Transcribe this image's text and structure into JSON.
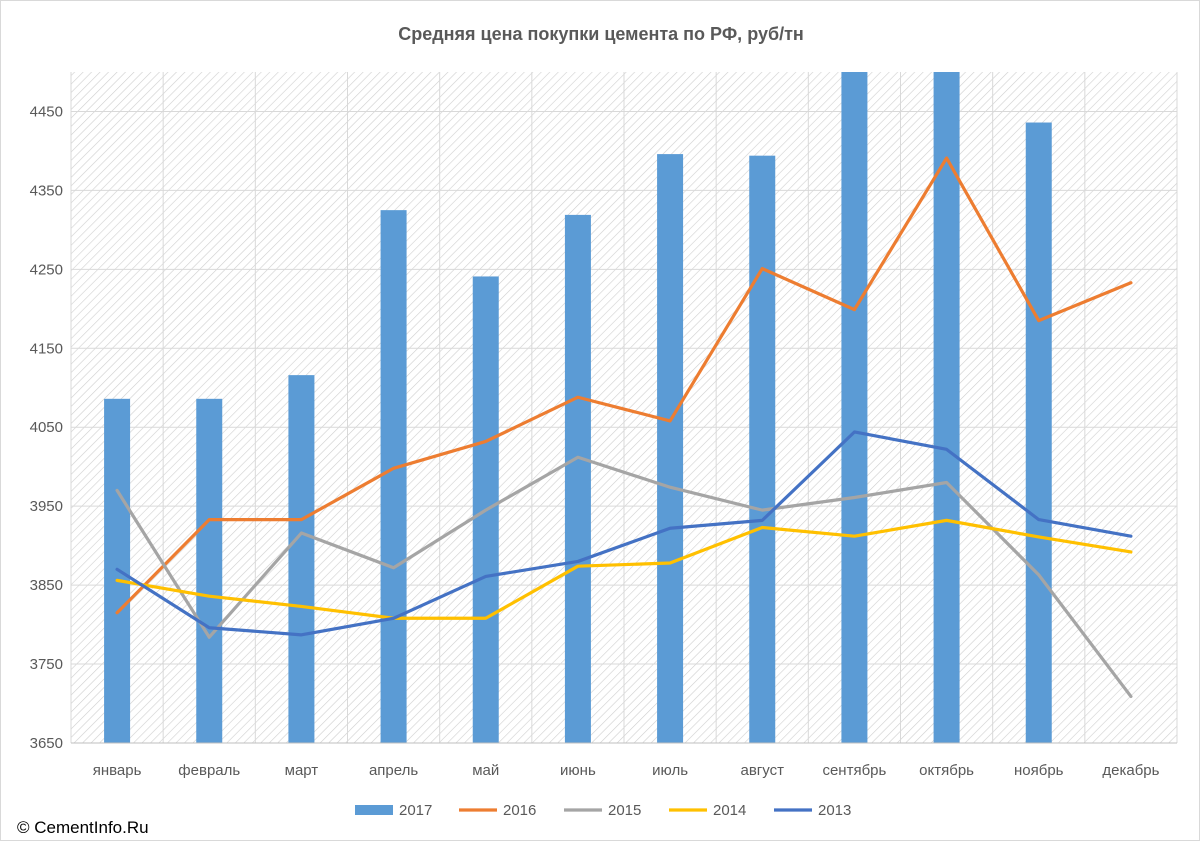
{
  "copyright": "© CementInfo.Ru",
  "chart_data": {
    "type": "bar",
    "title": "Средняя цена покупки цемента по РФ, руб/тн",
    "categories": [
      "январь",
      "февраль",
      "март",
      "апрель",
      "май",
      "июнь",
      "июль",
      "август",
      "сентябрь",
      "октябрь",
      "ноябрь",
      "декабрь"
    ],
    "ylim": [
      3650,
      4500
    ],
    "yticks": [
      3650,
      3750,
      3850,
      3950,
      4050,
      4150,
      4250,
      4350,
      4450
    ],
    "grid": true,
    "legend_position": "bottom",
    "series": [
      {
        "name": "2017",
        "type": "bar",
        "color": "#5b9bd5",
        "values": [
          4086,
          4086,
          4116,
          4325,
          4241,
          4319,
          4396,
          4394,
          4500,
          4500,
          4436,
          null
        ]
      },
      {
        "name": "2016",
        "type": "line",
        "color": "#ed7d31",
        "values": [
          3815,
          3933,
          3933,
          3998,
          4032,
          4088,
          4058,
          4251,
          4199,
          4391,
          4185,
          4233
        ]
      },
      {
        "name": "2015",
        "type": "line",
        "color": "#a5a5a5",
        "values": [
          3970,
          3784,
          3916,
          3872,
          3945,
          4012,
          3974,
          3945,
          3961,
          3980,
          3863,
          3709
        ]
      },
      {
        "name": "2014",
        "type": "line",
        "color": "#ffc000",
        "values": [
          3856,
          3836,
          3823,
          3808,
          3808,
          3874,
          3878,
          3923,
          3912,
          3932,
          3911,
          3892
        ]
      },
      {
        "name": "2013",
        "type": "line",
        "color": "#4472c4",
        "values": [
          3870,
          3796,
          3787,
          3808,
          3861,
          3880,
          3922,
          3932,
          4044,
          4022,
          3933,
          3912
        ]
      }
    ]
  }
}
